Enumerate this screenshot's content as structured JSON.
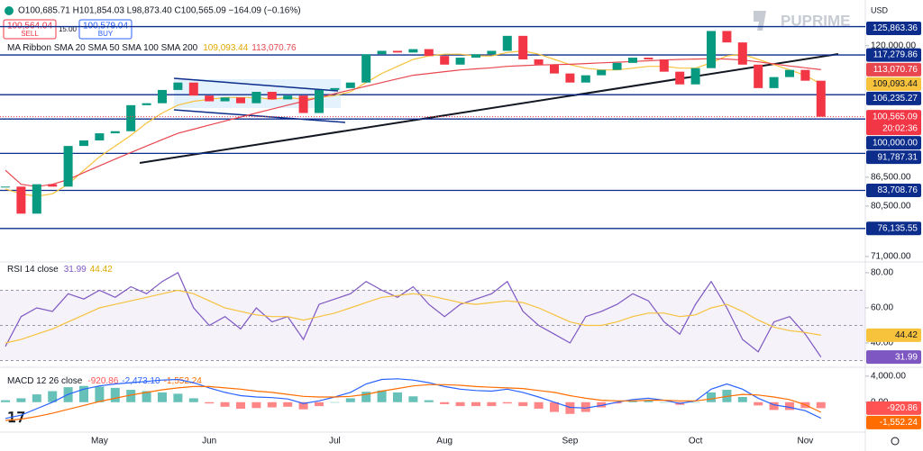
{
  "header": {
    "ohlc": "O100,685.71 H101,854.03 L98,873.40 C100,565.09 −164.09 (−0.16%)",
    "sell_price": "100,564.04",
    "sell": "SELL",
    "spread": "15.00",
    "buy_price": "100,579.04",
    "buy": "BUY",
    "brand": "PUPRIME",
    "currency": "USD"
  },
  "chart_data": [
    {
      "type": "candlestick",
      "categories": [
        null,
        null,
        null,
        null,
        null,
        null,
        "May",
        null,
        null,
        null,
        null,
        null,
        null,
        "Jun",
        null,
        null,
        null,
        null,
        null,
        null,
        null,
        "Jul",
        null,
        null,
        null,
        null,
        null,
        null,
        "Aug",
        null,
        null,
        null,
        null,
        null,
        null,
        null,
        "Sep",
        null,
        null,
        null,
        null,
        null,
        null,
        null,
        "Oct",
        null,
        null,
        null,
        null,
        null,
        null,
        "Nov",
        null
      ],
      "close": [
        84500,
        79000,
        85000,
        84500,
        93500,
        94800,
        96500,
        97000,
        103500,
        104000,
        107500,
        109500,
        106000,
        104500,
        105500,
        104000,
        107000,
        105000,
        106000,
        101500,
        107500,
        108000,
        109500,
        117500,
        118500,
        118000,
        119000,
        117000,
        114500,
        116500,
        117500,
        118500,
        123000,
        116000,
        114500,
        112000,
        109500,
        111500,
        113000,
        115000,
        116500,
        116000,
        112500,
        109000,
        113500,
        124500,
        121000,
        114500,
        108000,
        111000,
        113000,
        110000,
        100565.09
      ],
      "up_color": "#089981",
      "down_color": "#f23645",
      "ylim": [
        70200,
        132100
      ],
      "log": true,
      "yticks": [
        {
          "value": 71000,
          "label": "71,000.00"
        },
        {
          "value": 80500,
          "label": "80,500.00"
        },
        {
          "value": 86500,
          "label": "86,500.00"
        },
        {
          "value": 120000,
          "label": "120,000.00"
        }
      ],
      "legend": "MA Ribbon SMA 20 SMA 50 SMA 100 SMA 200",
      "series": [
        {
          "color": "#f7c23c",
          "values": [
            84000,
            83000,
            82500,
            83000,
            85000,
            88000,
            91000,
            93500,
            96000,
            99000,
            101500,
            103500,
            104500,
            105000,
            105500,
            105500,
            105500,
            105000,
            105500,
            105000,
            105500,
            106000,
            107000,
            109500,
            112000,
            114000,
            116000,
            117000,
            117500,
            117500,
            117000,
            117000,
            118000,
            118500,
            117500,
            116000,
            114500,
            113500,
            113000,
            113000,
            113500,
            114000,
            114000,
            113500,
            113500,
            115000,
            117000,
            117500,
            116000,
            114500,
            113000,
            111500,
            109093.44
          ],
          "last_label": "109,093.44"
        },
        {
          "color": "#e8474f",
          "values": [
            88000,
            85000,
            84500,
            85000,
            86000,
            87500,
            89000,
            90500,
            92000,
            93500,
            95000,
            96500,
            97500,
            98500,
            99500,
            100500,
            101500,
            102500,
            103500,
            104500,
            105500,
            106500,
            107500,
            108500,
            109500,
            110500,
            111500,
            112000,
            112500,
            113000,
            113300,
            113600,
            114000,
            114200,
            114400,
            114500,
            114600,
            114800,
            115000,
            115200,
            115400,
            115600,
            115800,
            116000,
            116100,
            116200,
            116100,
            115800,
            115300,
            114700,
            114100,
            113600,
            113070.76
          ],
          "last_label": "113,070.76"
        }
      ],
      "levels": [
        {
          "value": 125863.36,
          "label": "125,863.36"
        },
        {
          "value": 117279.86,
          "label": "117,279.86"
        },
        {
          "value": 106235.27,
          "label": "106,235.27"
        },
        {
          "value": 100000,
          "label": "100,000.00"
        },
        {
          "value": 91787.31,
          "label": "91,787.31"
        },
        {
          "value": 83708.76,
          "label": "83,708.76"
        },
        {
          "value": 76135.55,
          "label": "76,135.55"
        }
      ],
      "level_color": "#0c2d8c",
      "last_price": {
        "value": 100565.09,
        "label": "100,565.09"
      },
      "countdown": "20:02:36"
    },
    {
      "type": "line",
      "legend": "RSI 14 close",
      "ylim": [
        27.7,
        85.6
      ],
      "yticks": [
        {
          "value": 40,
          "label": "40.00"
        },
        {
          "value": 60,
          "label": "60.00"
        },
        {
          "value": 80,
          "label": "80.00"
        }
      ],
      "levels": [
        30,
        50,
        70
      ],
      "series": [
        {
          "color": "#7e57c2",
          "values": [
            38,
            55,
            60,
            58,
            68,
            65,
            70,
            66,
            72,
            68,
            75,
            80,
            60,
            50,
            55,
            48,
            60,
            52,
            55,
            42,
            62,
            65,
            68,
            75,
            70,
            66,
            72,
            62,
            55,
            62,
            65,
            68,
            75,
            58,
            50,
            45,
            40,
            55,
            58,
            62,
            68,
            64,
            52,
            45,
            62,
            75,
            60,
            42,
            35,
            52,
            55,
            45,
            31.99
          ]
        },
        {
          "color": "#f7c23c",
          "values": [
            40,
            42,
            45,
            48,
            52,
            56,
            60,
            62,
            64,
            66,
            68,
            70,
            68,
            64,
            60,
            58,
            56,
            55,
            55,
            53,
            55,
            57,
            60,
            63,
            66,
            67,
            68,
            67,
            65,
            63,
            62,
            63,
            64,
            63,
            60,
            56,
            52,
            50,
            50,
            52,
            55,
            57,
            57,
            55,
            56,
            60,
            62,
            58,
            53,
            49,
            47,
            46,
            44.42
          ]
        }
      ]
    },
    {
      "type": "macd",
      "legend": "MACD 12 26 close",
      "ylim": [
        -4600,
        5090
      ],
      "yticks": [
        {
          "value": 0,
          "label": "0.00"
        },
        {
          "value": 4000,
          "label": "4,000.00"
        }
      ],
      "histogram": {
        "up_color": "#26a69a",
        "down_color": "#ff5252",
        "values": [
          300,
          600,
          1200,
          1700,
          2300,
          2500,
          2400,
          2200,
          1900,
          1700,
          1500,
          1300,
          600,
          -200,
          -700,
          -1000,
          -900,
          -800,
          -700,
          -1100,
          -600,
          0,
          600,
          1600,
          1800,
          1500,
          900,
          300,
          -300,
          -600,
          -600,
          -600,
          -200,
          -600,
          -1000,
          -1500,
          -1800,
          -1500,
          -800,
          -200,
          200,
          300,
          0,
          -400,
          0,
          1500,
          1900,
          800,
          -500,
          -1200,
          -1200,
          -900,
          -920.86
        ]
      },
      "series": [
        {
          "color": "#2962ff",
          "values": [
            -2500,
            -2000,
            -1000,
            0,
            1200,
            2000,
            2500,
            2800,
            3000,
            3200,
            3400,
            3500,
            3000,
            2200,
            1500,
            1000,
            800,
            700,
            500,
            -200,
            200,
            800,
            1500,
            2800,
            3500,
            3600,
            3400,
            3000,
            2400,
            2000,
            1800,
            1700,
            2000,
            1500,
            800,
            0,
            -800,
            -900,
            -500,
            0,
            400,
            600,
            300,
            -200,
            200,
            2000,
            2800,
            2000,
            600,
            -400,
            -800,
            -1300,
            -2473.1
          ],
          "last_label": "-2,473.10"
        },
        {
          "color": "#ff6d00",
          "values": [
            -2800,
            -2600,
            -2200,
            -1700,
            -1100,
            -500,
            100,
            600,
            1100,
            1500,
            1900,
            2200,
            2400,
            2400,
            2200,
            2000,
            1700,
            1500,
            1200,
            900,
            800,
            800,
            900,
            1200,
            1700,
            2100,
            2500,
            2700,
            2700,
            2600,
            2400,
            2300,
            2200,
            2100,
            1800,
            1500,
            1000,
            600,
            300,
            200,
            200,
            300,
            300,
            200,
            200,
            500,
            900,
            1200,
            1100,
            800,
            400,
            -400,
            -1552.24
          ],
          "last_label": "-1,552.24"
        }
      ]
    }
  ]
}
